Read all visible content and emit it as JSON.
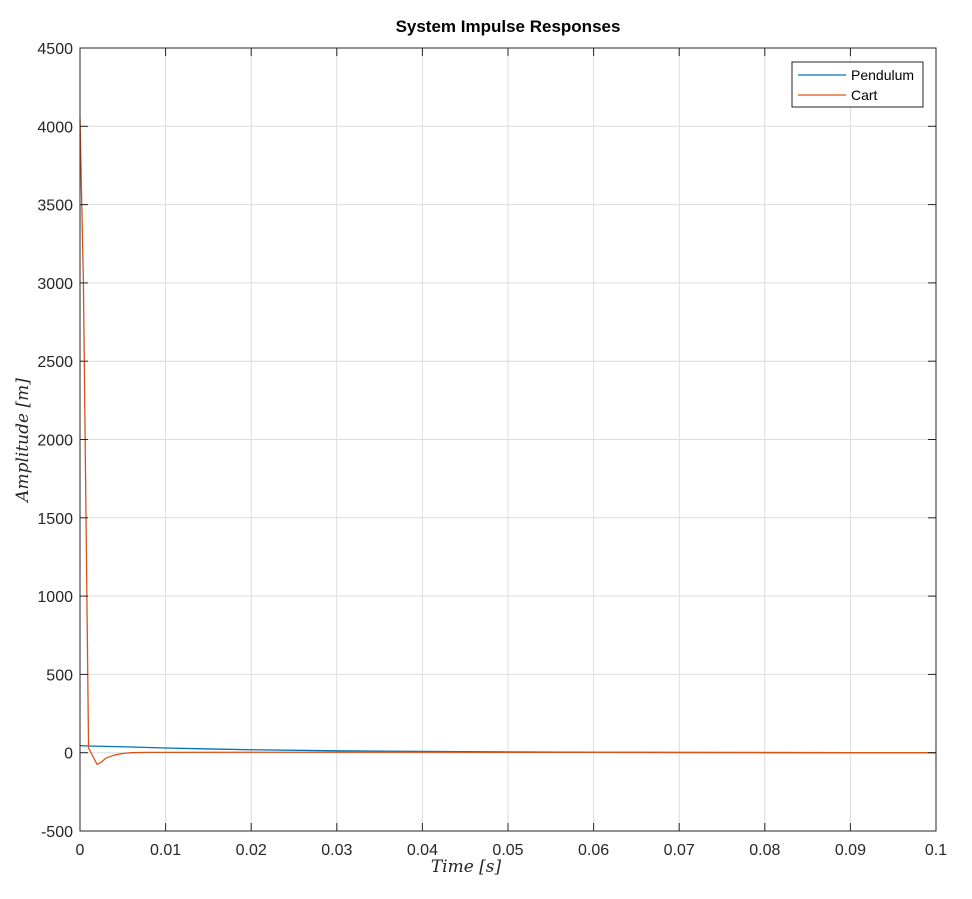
{
  "chart_data": {
    "type": "line",
    "title": "System Impulse Responses",
    "xlabel": "Time [s]",
    "ylabel": "Amplitude [m]",
    "xlim": [
      0,
      0.1
    ],
    "ylim": [
      -500,
      4500
    ],
    "xticks": [
      0,
      0.01,
      0.02,
      0.03,
      0.04,
      0.05,
      0.06,
      0.07,
      0.08,
      0.09,
      0.1
    ],
    "xtick_labels": [
      "0",
      "0.01",
      "0.02",
      "0.03",
      "0.04",
      "0.05",
      "0.06",
      "0.07",
      "0.08",
      "0.09",
      "0.1"
    ],
    "yticks": [
      -500,
      0,
      500,
      1000,
      1500,
      2000,
      2500,
      3000,
      3500,
      4000,
      4500
    ],
    "ytick_labels": [
      "-500",
      "0",
      "500",
      "1000",
      "1500",
      "2000",
      "2500",
      "3000",
      "3500",
      "4000",
      "4500"
    ],
    "grid": true,
    "legend_position": "top-right",
    "series": [
      {
        "name": "Pendulum",
        "color": "#0072BD",
        "x": [
          0,
          0.001,
          0.005,
          0.01,
          0.015,
          0.02,
          0.03,
          0.04,
          0.05,
          0.06,
          0.07,
          0.08,
          0.09,
          0.1
        ],
        "y": [
          45,
          43,
          38,
          30,
          24,
          19,
          12,
          8,
          5,
          3,
          2,
          1,
          0.5,
          0.3
        ]
      },
      {
        "name": "Cart",
        "color": "#D95319",
        "x": [
          0,
          0.0004,
          0.001,
          0.002,
          0.0025,
          0.003,
          0.004,
          0.005,
          0.006,
          0.008,
          0.01,
          0.02,
          0.03,
          0.04,
          0.05,
          0.06,
          0.07,
          0.08,
          0.09,
          0.1
        ],
        "y": [
          4050,
          3000,
          30,
          -75,
          -60,
          -35,
          -15,
          -5,
          0,
          2,
          2,
          3,
          3,
          3,
          2,
          2,
          1,
          1,
          0,
          0
        ]
      }
    ]
  }
}
